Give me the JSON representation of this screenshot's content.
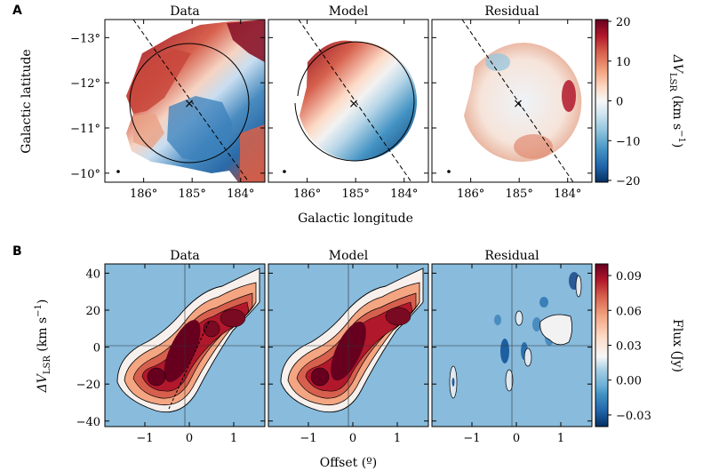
{
  "colors": {
    "diverging": [
      "#053061",
      "#2166ac",
      "#4393c3",
      "#92c5de",
      "#d1e5f0",
      "#f7f7f7",
      "#fddbc7",
      "#f4a582",
      "#d6604d",
      "#b2182b",
      "#67001f"
    ]
  },
  "panel_a": {
    "letter": "A",
    "titles": [
      "Data",
      "Model",
      "Residual"
    ],
    "xlabel": "Galactic longitude",
    "ylabel": "Galactic latitude",
    "xticks": [
      "186°",
      "185°",
      "184°"
    ],
    "yticks": [
      "−13°",
      "−12°",
      "−11°",
      "−10°"
    ],
    "colorbar": {
      "label_main": "ΔV",
      "label_sub": "LSR",
      "label_unit": " (km s",
      "label_exp": "−1",
      "label_end": ")",
      "ticks": [
        "20",
        "10",
        "0",
        "−10",
        "−20"
      ]
    }
  },
  "panel_b": {
    "letter": "B",
    "titles": [
      "Data",
      "Model",
      "Residual"
    ],
    "xlabel": "Offset (º)",
    "ylabel_main": "ΔV",
    "ylabel_sub": "LSR",
    "ylabel_unit": " (km s",
    "ylabel_exp": "−1",
    "ylabel_end": ")",
    "xticks": [
      "−1",
      "0",
      "1"
    ],
    "yticks": [
      "40",
      "20",
      "0",
      "−20",
      "−40"
    ],
    "colorbar": {
      "label": "Flux (Jy)",
      "ticks": [
        "0.09",
        "0.06",
        "0.03",
        "0.00",
        "−0.03"
      ]
    }
  },
  "chart_data": [
    {
      "type": "heatmap",
      "panels": [
        "Data",
        "Model",
        "Residual"
      ],
      "xlabel": "Galactic longitude",
      "ylabel": "Galactic latitude",
      "xlim": [
        186.8,
        183.5
      ],
      "ylim": [
        -9.8,
        -13.4
      ],
      "center": [
        185.0,
        -11.5
      ],
      "colorbar_label": "ΔV_LSR (km s^-1)",
      "colorbar_range": [
        -20,
        20
      ],
      "colorbar_ticks": [
        20,
        10,
        0,
        -10,
        -20
      ]
    },
    {
      "type": "heatmap",
      "panels": [
        "Data",
        "Model",
        "Residual"
      ],
      "xlabel": "Offset (º)",
      "ylabel": "ΔV_LSR (km s^-1)",
      "xlim": [
        -1.9,
        1.7
      ],
      "ylim": [
        -43,
        45
      ],
      "colorbar_label": "Flux (Jy)",
      "colorbar_range": [
        -0.04,
        0.1
      ],
      "colorbar_ticks": [
        0.09,
        0.06,
        0.03,
        0.0,
        -0.03
      ]
    }
  ]
}
